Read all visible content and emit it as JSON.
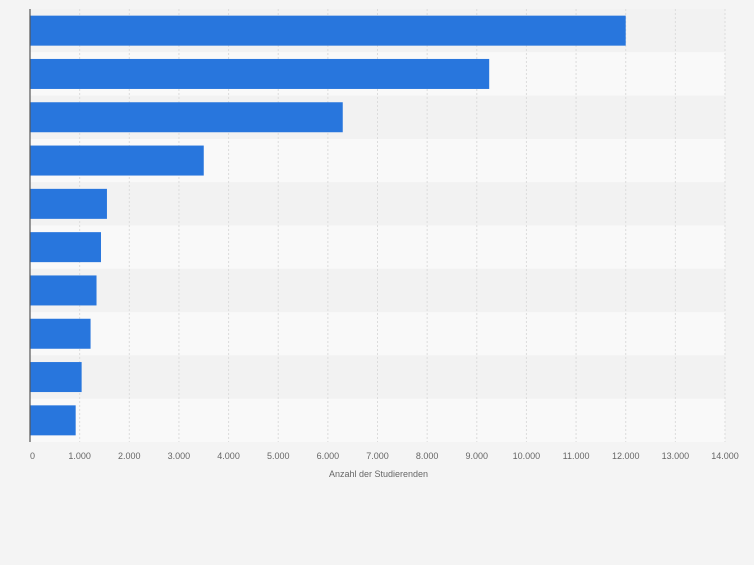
{
  "chart_data": {
    "type": "bar",
    "orientation": "horizontal",
    "title": "",
    "xlabel": "Anzahl der Studierenden",
    "ylabel": "",
    "categories": [
      "",
      "",
      "",
      "",
      "",
      "",
      "",
      "",
      "",
      ""
    ],
    "values": [
      12000,
      9250,
      6300,
      3500,
      1550,
      1430,
      1340,
      1220,
      1040,
      920
    ],
    "xlim": [
      0,
      14000
    ],
    "xticks": [
      0,
      1000,
      2000,
      3000,
      4000,
      5000,
      6000,
      7000,
      8000,
      9000,
      10000,
      11000,
      12000,
      13000,
      14000
    ],
    "xtick_labels": [
      "0",
      "1.000",
      "2.000",
      "3.000",
      "4.000",
      "5.000",
      "6.000",
      "7.000",
      "8.000",
      "9.000",
      "10.000",
      "11.000",
      "12.000",
      "13.000",
      "14.000"
    ],
    "grid": true,
    "legend": "none",
    "colors": {
      "bar": "#2876dd",
      "band_dark": "#f2f2f2",
      "band_light": "#f9f9f9",
      "grid": "#dcdcdc",
      "axis": "#555555",
      "text": "#666666"
    }
  }
}
